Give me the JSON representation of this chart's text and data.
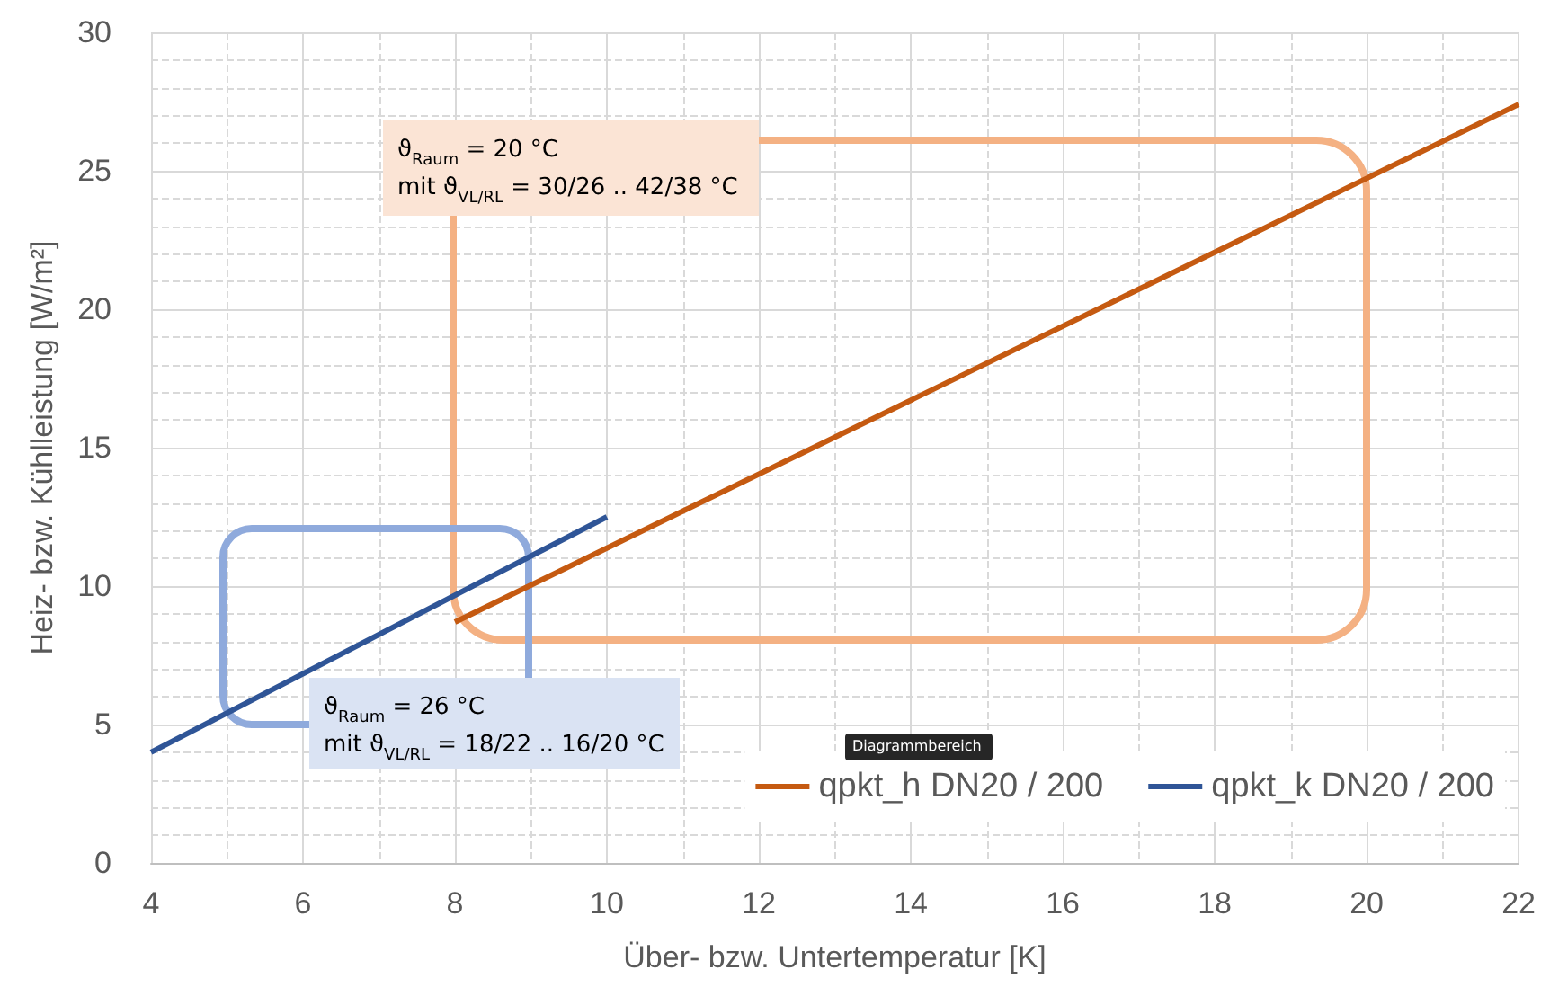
{
  "chart_data": {
    "type": "line",
    "xlabel": "Über- bzw. Untertemperatur [K]",
    "ylabel": "Heiz- bzw. Kühlleistung [W/m²]",
    "xlim": [
      4,
      22
    ],
    "xticks": [
      4,
      6,
      8,
      10,
      12,
      14,
      16,
      18,
      20,
      22
    ],
    "ylim": [
      0,
      30
    ],
    "yticks": [
      0,
      5,
      10,
      15,
      20,
      25,
      30
    ],
    "grid": true,
    "legend": "bottom right",
    "marker": "none",
    "line_style": "solid",
    "series": [
      {
        "name": "qpkt_h DN20 / 200",
        "color": "#c55a11",
        "x": [
          8,
          22
        ],
        "values": [
          8.7,
          27.4
        ]
      },
      {
        "name": "qpkt_k DN20 / 200",
        "color": "#2f5597",
        "x": [
          4,
          10
        ],
        "values": [
          4.0,
          12.5
        ]
      }
    ],
    "annotations": [
      "ϑ$_{Raum}$ = 20 °C\nmit ϑ$_{VL/RL}$ = 30/26 .. 42/38 °C",
      "ϑ$_{Raum}$ = 26 °C\nmit ϑ$_{VL/RL}$ = 18/22 .. 16/20 °C",
      "Diagrammbereich"
    ]
  }
}
